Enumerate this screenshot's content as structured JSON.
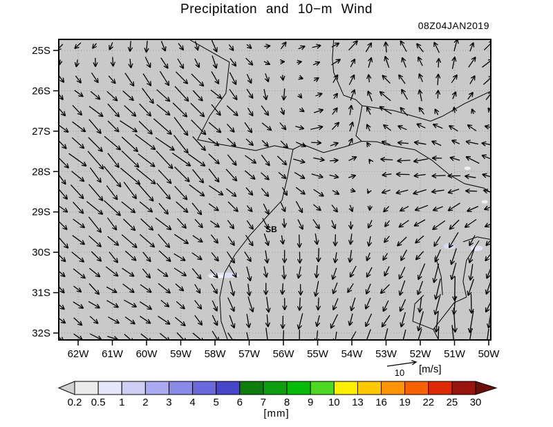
{
  "title": "Precipitation and 10−m Wind",
  "timestamp": "08Z04JAN2019",
  "colors": {
    "map_bg": "#c9c9c9",
    "grid_dots": "#9a9a9a",
    "arrow": "#000000",
    "border_line": "#000000",
    "frame": "#000000"
  },
  "axes": {
    "lat_labels": [
      "25S",
      "26S",
      "27S",
      "28S",
      "29S",
      "30S",
      "31S",
      "32S"
    ],
    "lon_labels": [
      "62W",
      "61W",
      "60W",
      "59W",
      "58W",
      "57W",
      "56W",
      "55W",
      "54W",
      "53W",
      "52W",
      "51W",
      "50W"
    ]
  },
  "reference_vector": {
    "value_label": "10",
    "unit_label": "[m/s]"
  },
  "colorbar": {
    "unit_label": "[mm]",
    "tick_labels": [
      "0.2",
      "0.5",
      "1",
      "2",
      "3",
      "4",
      "5",
      "6",
      "7",
      "8",
      "9",
      "10",
      "13",
      "16",
      "19",
      "22",
      "25",
      "30"
    ],
    "segment_colors": [
      "#ebebeb",
      "#e6e6fb",
      "#cfcff6",
      "#aaaaf0",
      "#8a8ae8",
      "#6a6adc",
      "#4646c8",
      "#0e7d0e",
      "#0f9e0f",
      "#06bb06",
      "#4fd823",
      "#fdee02",
      "#fdc800",
      "#fd9404",
      "#f96203",
      "#dd2a05",
      "#99150b"
    ],
    "under_color": "#d2d2d2",
    "over_color": "#6b0f08"
  },
  "chart_data": {
    "type": "vector_field_map",
    "lon_ticks": [
      62,
      61,
      60,
      59,
      58,
      57,
      56,
      55,
      54,
      53,
      52,
      51,
      50
    ],
    "lat_ticks": [
      25,
      26,
      27,
      28,
      29,
      30,
      31,
      32
    ],
    "station": {
      "label": "SB",
      "lon": 56.36,
      "lat": 29.43
    },
    "wind_grid": {
      "units": "m/s",
      "lons": [
        62,
        61,
        60,
        59,
        58,
        57,
        56,
        55,
        54,
        53,
        52,
        51,
        50
      ],
      "lats": [
        25,
        26,
        27,
        28,
        29,
        30,
        31,
        32
      ],
      "u": [
        [
          -2,
          -1,
          0,
          2,
          1,
          2,
          2,
          3,
          3,
          0,
          -3,
          1,
          3
        ],
        [
          3,
          4,
          5,
          5,
          4,
          2,
          0,
          2,
          1,
          -4,
          0,
          2,
          3
        ],
        [
          4,
          5,
          6,
          5,
          4,
          3,
          3,
          4,
          1,
          -3,
          -4,
          -3,
          -5
        ],
        [
          5,
          6,
          6,
          5,
          4,
          3,
          3,
          4,
          3,
          -4,
          -5,
          -4,
          -5
        ],
        [
          4,
          5,
          5,
          4,
          4,
          2,
          1,
          3,
          1,
          -2,
          -4,
          -4,
          -3
        ],
        [
          4,
          4,
          4,
          4,
          3,
          2,
          0,
          0,
          -1,
          -2,
          -3,
          -2,
          -3
        ],
        [
          3,
          4,
          4,
          3,
          2,
          1,
          0,
          -1,
          -2,
          -3,
          -2,
          0,
          -2
        ],
        [
          3,
          4,
          3,
          4,
          3,
          2,
          0,
          -1,
          -2,
          -2,
          -1,
          0,
          -1
        ]
      ],
      "v": [
        [
          -2,
          -3,
          -4,
          -3,
          -4,
          -2,
          2,
          1,
          3,
          4,
          3,
          4,
          3
        ],
        [
          -3,
          -4,
          -5,
          -5,
          -4,
          -4,
          -4,
          1,
          4,
          3,
          4,
          3,
          3
        ],
        [
          -4,
          -5,
          -5,
          -5,
          -4,
          -3,
          -2,
          1,
          3,
          2,
          1,
          2,
          1
        ],
        [
          -5,
          -6,
          -5,
          -5,
          -4,
          -3,
          -3,
          -1,
          1,
          0,
          -1,
          1,
          2
        ],
        [
          -4,
          -5,
          -5,
          -4,
          -3,
          -3,
          -4,
          -3,
          -3,
          -2,
          -2,
          -3,
          -1
        ],
        [
          -4,
          -4,
          -4,
          -3,
          -3,
          -4,
          -4,
          -5,
          -4,
          -3,
          -4,
          -6,
          -4
        ],
        [
          -3,
          -3,
          -3,
          -3,
          -4,
          -5,
          -5,
          -5,
          -4,
          -4,
          -6,
          -8,
          -5
        ],
        [
          -2,
          -2,
          -3,
          -3,
          -4,
          -5,
          -5,
          -5,
          -5,
          -5,
          -6,
          -8,
          -6
        ]
      ]
    },
    "borders": [
      [
        [
          58.83,
          24.69
        ],
        [
          57.58,
          25.29
        ],
        [
          57.68,
          26.06
        ],
        [
          58.16,
          26.63
        ],
        [
          58.51,
          27.21
        ],
        [
          57.82,
          27.33
        ],
        [
          56.81,
          27.48
        ],
        [
          56.26,
          27.36
        ],
        [
          55.72,
          27.45
        ],
        [
          55.43,
          27.33
        ],
        [
          54.83,
          27.53
        ],
        [
          54.18,
          27.38
        ],
        [
          53.72,
          27.25
        ],
        [
          53.27,
          27.26
        ],
        [
          52.97,
          27.34
        ],
        [
          52.16,
          27.46
        ],
        [
          51.66,
          27.72
        ],
        [
          51.15,
          28.08
        ],
        [
          50.71,
          28.3
        ],
        [
          50.14,
          28.41
        ],
        [
          49.84,
          28.58
        ]
      ],
      [
        [
          55.72,
          27.45
        ],
        [
          55.9,
          28.2
        ],
        [
          56.04,
          28.71
        ],
        [
          56.51,
          29.14
        ],
        [
          56.97,
          29.57
        ],
        [
          57.41,
          30.05
        ],
        [
          57.72,
          30.51
        ],
        [
          57.86,
          31.11
        ],
        [
          57.82,
          31.71
        ],
        [
          57.62,
          32.19
        ]
      ],
      [
        [
          54.53,
          24.69
        ],
        [
          54.57,
          25.21
        ],
        [
          54.53,
          25.55
        ],
        [
          54.24,
          26.11
        ],
        [
          53.88,
          26.22
        ],
        [
          53.7,
          26.37
        ],
        [
          53.78,
          26.75
        ],
        [
          53.88,
          27.11
        ],
        [
          53.72,
          27.25
        ]
      ],
      [
        [
          53.7,
          26.37
        ],
        [
          52.77,
          26.49
        ],
        [
          51.7,
          26.75
        ],
        [
          51.35,
          26.63
        ],
        [
          50.71,
          26.32
        ],
        [
          49.94,
          26.01
        ]
      ],
      [
        [
          50.28,
          29.71
        ],
        [
          50.65,
          30.2
        ],
        [
          50.75,
          30.72
        ],
        [
          50.65,
          31.11
        ],
        [
          51.01,
          31.25
        ],
        [
          51.62,
          31.91
        ],
        [
          51.45,
          32.19
        ]
      ],
      [
        [
          51.9,
          31.06
        ],
        [
          52.16,
          31.28
        ],
        [
          52.22,
          31.71
        ],
        [
          51.62,
          31.91
        ]
      ],
      [
        [
          50.75,
          29.74
        ],
        [
          50.34,
          29.62
        ],
        [
          49.9,
          29.69
        ]
      ],
      [
        [
          51.56,
          30.08
        ],
        [
          51.39,
          30.6
        ],
        [
          51.35,
          31.06
        ]
      ]
    ],
    "precip_patches": [
      {
        "lon": 57.75,
        "lat": 30.57,
        "w": 46,
        "h": 8,
        "color": "#dfdff7"
      },
      {
        "lon": 57.95,
        "lat": 30.6,
        "w": 22,
        "h": 5,
        "color": "#f4f4f4"
      },
      {
        "lon": 51.15,
        "lat": 29.85,
        "w": 17,
        "h": 9,
        "color": "#d9d9f3"
      },
      {
        "lon": 50.35,
        "lat": 29.9,
        "w": 18,
        "h": 8,
        "color": "#e4e4f8"
      },
      {
        "lon": 50.62,
        "lat": 27.92,
        "w": 9,
        "h": 5,
        "color": "#f0f0f0"
      },
      {
        "lon": 50.12,
        "lat": 28.75,
        "w": 9,
        "h": 5,
        "color": "#ededed"
      },
      {
        "lon": 49.98,
        "lat": 30.15,
        "w": 12,
        "h": 7,
        "color": "#dcdcf5"
      }
    ]
  }
}
